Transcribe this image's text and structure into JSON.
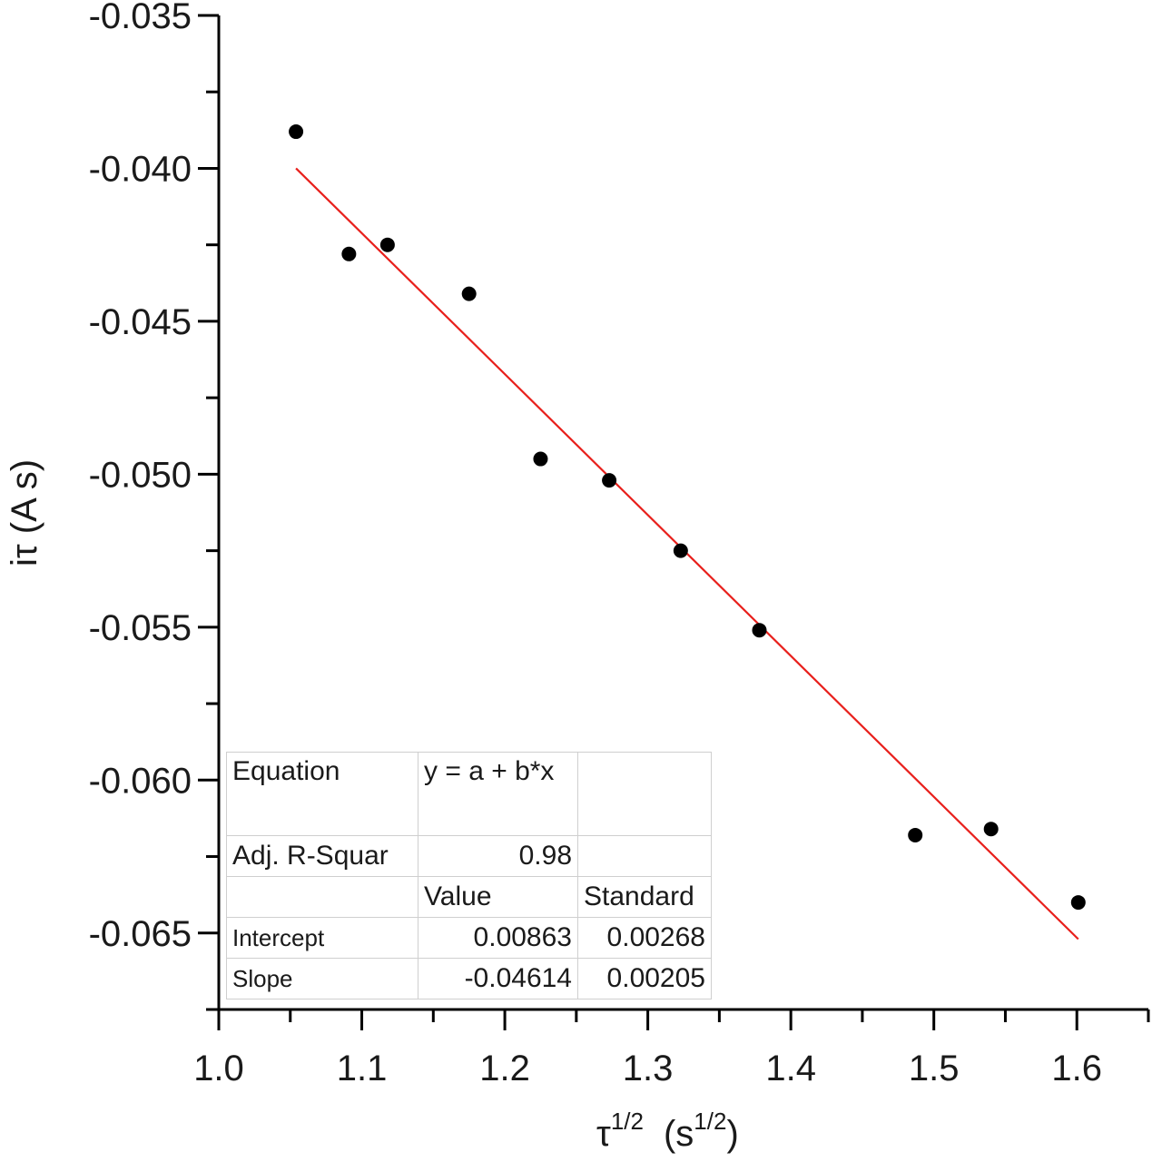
{
  "chart_data": {
    "type": "scatter",
    "xlabel": "τ",
    "xlabel_sup": "1/2",
    "xlabel_unit": "(s",
    "xlabel_unit_sup": "1/2",
    "xlabel_unit_close": ")",
    "ylabel": "iτ  (A s)",
    "xlim": [
      1.0,
      1.65
    ],
    "ylim": [
      -0.0675,
      -0.035
    ],
    "x_ticks": [
      "1.0",
      "1.1",
      "1.2",
      "1.3",
      "1.4",
      "1.5",
      "1.6"
    ],
    "y_ticks": [
      "-0.035",
      "-0.040",
      "-0.045",
      "-0.050",
      "-0.055",
      "-0.060",
      "-0.065"
    ],
    "series": [
      {
        "type": "scatter",
        "marker": "circle",
        "color": "#000000",
        "x": [
          1.054,
          1.091,
          1.118,
          1.175,
          1.225,
          1.273,
          1.323,
          1.378,
          1.487,
          1.54,
          1.601
        ],
        "y": [
          -0.0388,
          -0.0428,
          -0.0425,
          -0.0441,
          -0.0495,
          -0.0502,
          -0.0525,
          -0.0551,
          -0.0618,
          -0.0616,
          -0.064
        ]
      },
      {
        "type": "line",
        "color": "#e8201c",
        "x": [
          1.054,
          1.601
        ],
        "y": [
          -0.04,
          -0.0652
        ]
      }
    ],
    "fit_table": {
      "equation_label": "Equation",
      "equation": "y = a + b*x",
      "r2_label": "Adj. R-Squar",
      "r2_value": "0.98",
      "value_header": "Value",
      "std_header": "Standard",
      "intercept_label": "Intercept",
      "intercept_value": "0.00863",
      "intercept_std": "0.00268",
      "slope_label": "Slope",
      "slope_value": "-0.04614",
      "slope_std": "0.00205"
    },
    "grid": false,
    "legend": "none"
  }
}
